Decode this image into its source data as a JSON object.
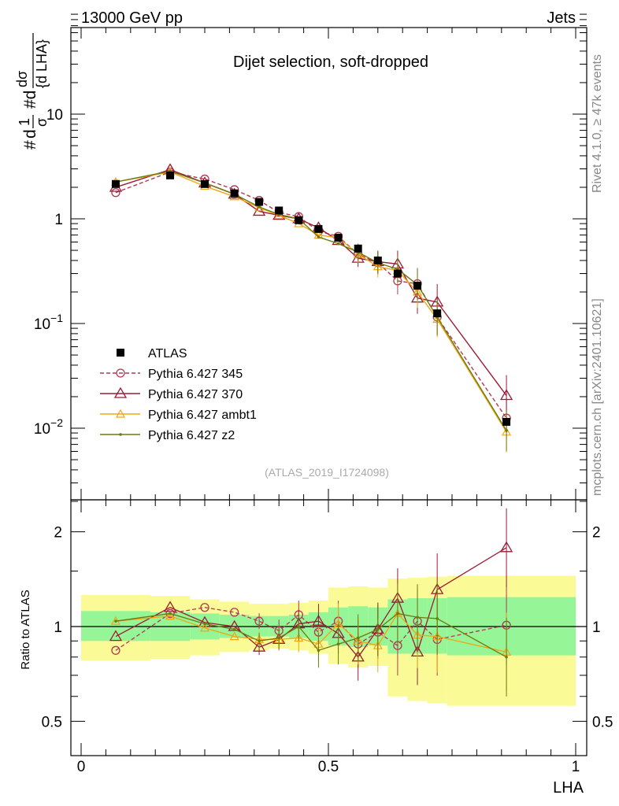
{
  "header": {
    "left": "13000 GeV pp",
    "right": "Jets"
  },
  "side_labels": {
    "rivet": "Rivet 4.1.0, ≥ 47k events",
    "mcplots": "mcplots.cern.ch [arXiv:2401.10621]"
  },
  "chart_data": [
    {
      "type": "line",
      "panel": "main",
      "title": "Dijet selection, soft-dropped",
      "xlabel": "LHA",
      "ylabel_parts": {
        "hash_left": "#",
        "d": "d",
        "one": "1",
        "sigma": "σ",
        "hash_d": "#d",
        "dsigma": "dσ",
        "dlha": "{d LHA}"
      },
      "yscale": "log",
      "xlim": [
        0,
        1
      ],
      "ylim": [
        0.002,
        100
      ],
      "y_ticks": [
        {
          "value": 0.01,
          "base": "10",
          "exp": "−2"
        },
        {
          "value": 0.1,
          "base": "10",
          "exp": "−1"
        },
        {
          "value": 1,
          "label": "1"
        },
        {
          "value": 10,
          "label": "10"
        }
      ],
      "watermark": "(ATLAS_2019_I1724098)",
      "series": [
        {
          "name": "ATLAS",
          "color": "#000000",
          "marker": "square",
          "style": "none",
          "x": [
            0.07,
            0.18,
            0.25,
            0.31,
            0.36,
            0.4,
            0.44,
            0.48,
            0.52,
            0.56,
            0.6,
            0.64,
            0.68,
            0.72,
            0.86
          ],
          "y": [
            2.15,
            2.6,
            2.15,
            1.75,
            1.45,
            1.2,
            0.97,
            0.8,
            0.66,
            0.52,
            0.4,
            0.3,
            0.23,
            0.125,
            0.0115
          ]
        },
        {
          "name": "Pythia 6.427 345",
          "color": "#b03a54",
          "marker": "circle",
          "style": "dashed",
          "x": [
            0.07,
            0.18,
            0.25,
            0.31,
            0.36,
            0.4,
            0.44,
            0.48,
            0.52,
            0.56,
            0.6,
            0.64,
            0.68,
            0.72,
            0.86
          ],
          "y": [
            1.78,
            2.8,
            2.4,
            1.9,
            1.5,
            1.15,
            1.05,
            0.76,
            0.68,
            0.46,
            0.38,
            0.255,
            0.24,
            0.115,
            0.0125
          ]
        },
        {
          "name": "Pythia 6.427 370",
          "color": "#9b1b35",
          "marker": "triangle",
          "style": "solid",
          "x": [
            0.07,
            0.18,
            0.25,
            0.31,
            0.36,
            0.4,
            0.44,
            0.48,
            0.52,
            0.56,
            0.6,
            0.64,
            0.68,
            0.72,
            0.86
          ],
          "y": [
            2.0,
            2.95,
            2.2,
            1.72,
            1.18,
            1.08,
            1.0,
            0.82,
            0.62,
            0.42,
            0.39,
            0.37,
            0.175,
            0.16,
            0.0205
          ]
        },
        {
          "name": "Pythia 6.427 ambt1",
          "color": "#f2a516",
          "marker": "triangle-small",
          "style": "solid",
          "x": [
            0.07,
            0.18,
            0.25,
            0.31,
            0.36,
            0.4,
            0.44,
            0.48,
            0.52,
            0.56,
            0.6,
            0.64,
            0.68,
            0.72,
            0.86
          ],
          "y": [
            2.25,
            2.8,
            2.05,
            1.63,
            1.28,
            1.08,
            0.9,
            0.7,
            0.66,
            0.46,
            0.35,
            0.32,
            0.2,
            0.11,
            0.0092
          ]
        },
        {
          "name": "Pythia 6.427 z2",
          "color": "#6b7d12",
          "marker": "dot",
          "style": "solid",
          "x": [
            0.07,
            0.18,
            0.25,
            0.31,
            0.36,
            0.4,
            0.44,
            0.48,
            0.52,
            0.56,
            0.6,
            0.64,
            0.68,
            0.72,
            0.86
          ],
          "y": [
            2.25,
            2.85,
            2.2,
            1.72,
            1.3,
            1.1,
            1.0,
            0.67,
            0.58,
            0.48,
            0.38,
            0.33,
            0.235,
            0.115,
            0.0095
          ]
        }
      ]
    },
    {
      "type": "line",
      "panel": "ratio",
      "ylabel": "Ratio to ATLAS",
      "xlabel": "LHA",
      "xlim": [
        0,
        1
      ],
      "ylim": [
        0.4,
        2.4
      ],
      "yscale": "log",
      "x_ticks": [
        "0",
        "0.5",
        "1"
      ],
      "y_ticks": [
        "0.5",
        "1",
        "2"
      ],
      "bands": {
        "edges": [
          0,
          0.14,
          0.22,
          0.28,
          0.34,
          0.38,
          0.42,
          0.46,
          0.5,
          0.54,
          0.58,
          0.62,
          0.66,
          0.7,
          0.74,
          1
        ],
        "yellow_lo": [
          0.78,
          0.79,
          0.81,
          0.83,
          0.84,
          0.85,
          0.84,
          0.82,
          0.76,
          0.74,
          0.75,
          0.6,
          0.58,
          0.57,
          0.56
        ],
        "yellow_hi": [
          1.26,
          1.25,
          1.22,
          1.2,
          1.18,
          1.18,
          1.19,
          1.21,
          1.33,
          1.34,
          1.33,
          1.42,
          1.43,
          1.44,
          1.45
        ],
        "green_lo": [
          0.9,
          0.9,
          0.91,
          0.92,
          0.93,
          0.93,
          0.92,
          0.9,
          0.87,
          0.86,
          0.87,
          0.82,
          0.82,
          0.82,
          0.81
        ],
        "green_hi": [
          1.12,
          1.11,
          1.1,
          1.09,
          1.08,
          1.08,
          1.09,
          1.11,
          1.15,
          1.16,
          1.15,
          1.22,
          1.23,
          1.23,
          1.24
        ],
        "yellow_color": "#fafa96",
        "green_color": "#96f596"
      },
      "series": [
        {
          "name": "Pythia 6.427 345",
          "color": "#b03a54",
          "y": [
            0.84,
            1.1,
            1.15,
            1.11,
            1.04,
            0.97,
            1.09,
            0.96,
            1.04,
            0.88,
            0.96,
            0.87,
            1.04,
            0.91,
            1.01
          ]
        },
        {
          "name": "Pythia 6.427 370",
          "color": "#9b1b35",
          "y": [
            0.93,
            1.15,
            1.03,
            1.0,
            0.86,
            0.91,
            1.02,
            1.04,
            0.95,
            0.8,
            0.98,
            1.23,
            0.83,
            1.31,
            1.78
          ]
        },
        {
          "name": "Pythia 6.427 ambt1",
          "color": "#f2a516",
          "y": [
            1.04,
            1.08,
            0.99,
            0.93,
            0.91,
            0.91,
            0.92,
            0.88,
            1.02,
            0.9,
            0.87,
            1.1,
            0.94,
            0.93,
            0.83
          ]
        },
        {
          "name": "Pythia 6.427 z2",
          "color": "#6b7d12",
          "y": [
            1.04,
            1.1,
            1.02,
            0.98,
            0.9,
            0.92,
            1.0,
            0.84,
            0.88,
            0.92,
            0.98,
            1.1,
            1.07,
            1.06,
            0.8
          ]
        }
      ]
    }
  ]
}
